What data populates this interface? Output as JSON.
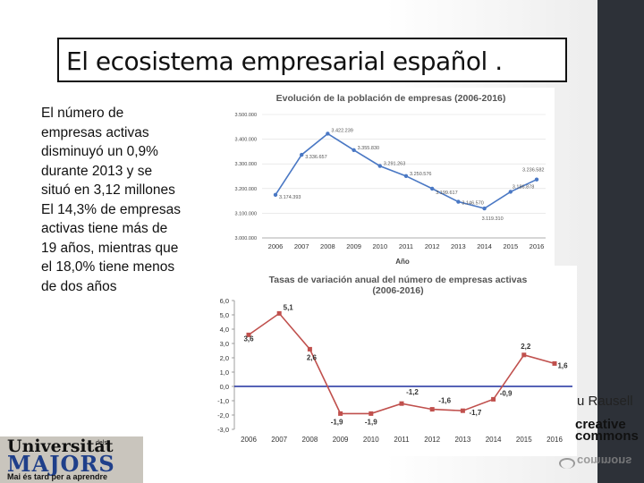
{
  "slide": {
    "title": "El ecosistema empresarial español .",
    "body_lines": [
      "El número de",
      "empresas activas",
      "disminuyó un 0,9%",
      "durante 2013 y se",
      "situó en 3,12 millones",
      "El 14,3% de empresas",
      "activas tiene más de",
      "19 años, mientras que",
      "el 18,0% tiene menos",
      "de dos años"
    ],
    "author": "u Rausell",
    "license_l1": "creative",
    "license_l2": "commons",
    "license_mirror": "commons"
  },
  "logo": {
    "line1": "Universitat",
    "dels": "dels",
    "line2": "MAJORS",
    "tagline": "Mai és tard per a aprendre"
  },
  "chart_data": [
    {
      "type": "line",
      "title": "Evolución de la población de empresas (2006-2016)",
      "xlabel": "Año",
      "ylabel": "",
      "categories": [
        "2006",
        "2007",
        "2008",
        "2009",
        "2010",
        "2011",
        "2012",
        "2013",
        "2014",
        "2015",
        "2016"
      ],
      "values": [
        3174393,
        3336657,
        3422239,
        3355830,
        3291263,
        3250576,
        3199617,
        3146570,
        3119310,
        3186878,
        3236582
      ],
      "data_labels": [
        "3.174.393",
        "3.336.657",
        "3.422.239",
        "3.355.830",
        "3.291.263",
        "3.250.576",
        "3.199.617",
        "3.146.570",
        "3.119.310",
        "3.186.878",
        "3.236.582"
      ],
      "ylim": [
        3000000,
        3500000
      ],
      "yticks": [
        3000000,
        3100000,
        3200000,
        3300000,
        3400000,
        3500000
      ],
      "ytick_labels": [
        "3.000.000",
        "3.100.000",
        "3.200.000",
        "3.300.000",
        "3.400.000",
        "3.500.000"
      ],
      "line_color": "#4a78c4",
      "grid": true
    },
    {
      "type": "line",
      "title": "Tasas de variación anual del número de empresas activas (2006-2016)",
      "title_l1": "Tasas de variación anual del número de empresas activas",
      "title_l2": "(2006-2016)",
      "xlabel": "",
      "ylabel": "",
      "categories": [
        "2006",
        "2007",
        "2008",
        "2009",
        "2010",
        "2011",
        "2012",
        "2013",
        "2014",
        "2015",
        "2016"
      ],
      "values": [
        3.6,
        5.1,
        2.6,
        -1.9,
        -1.9,
        -1.2,
        -1.6,
        -1.7,
        -0.9,
        2.2,
        1.6
      ],
      "data_labels": [
        "3,6",
        "5,1",
        "2,6",
        "-1,9",
        "-1,9",
        "-1,2",
        "-1,6",
        "-1,7",
        "-0,9",
        "2,2",
        "1,6"
      ],
      "ylim": [
        -3.0,
        6.0
      ],
      "yticks": [
        6.0,
        5.0,
        4.0,
        3.0,
        2.0,
        1.0,
        0.0,
        -1.0,
        -2.0,
        -3.0
      ],
      "ytick_labels": [
        "6,0",
        "5,0",
        "4,0",
        "3,0",
        "2,0",
        "1,0",
        "0,0",
        "-1,0",
        "-2,0",
        "-3,0"
      ],
      "line_color": "#c0504d",
      "zero_line_color": "#1f2f9f",
      "grid": false
    }
  ]
}
